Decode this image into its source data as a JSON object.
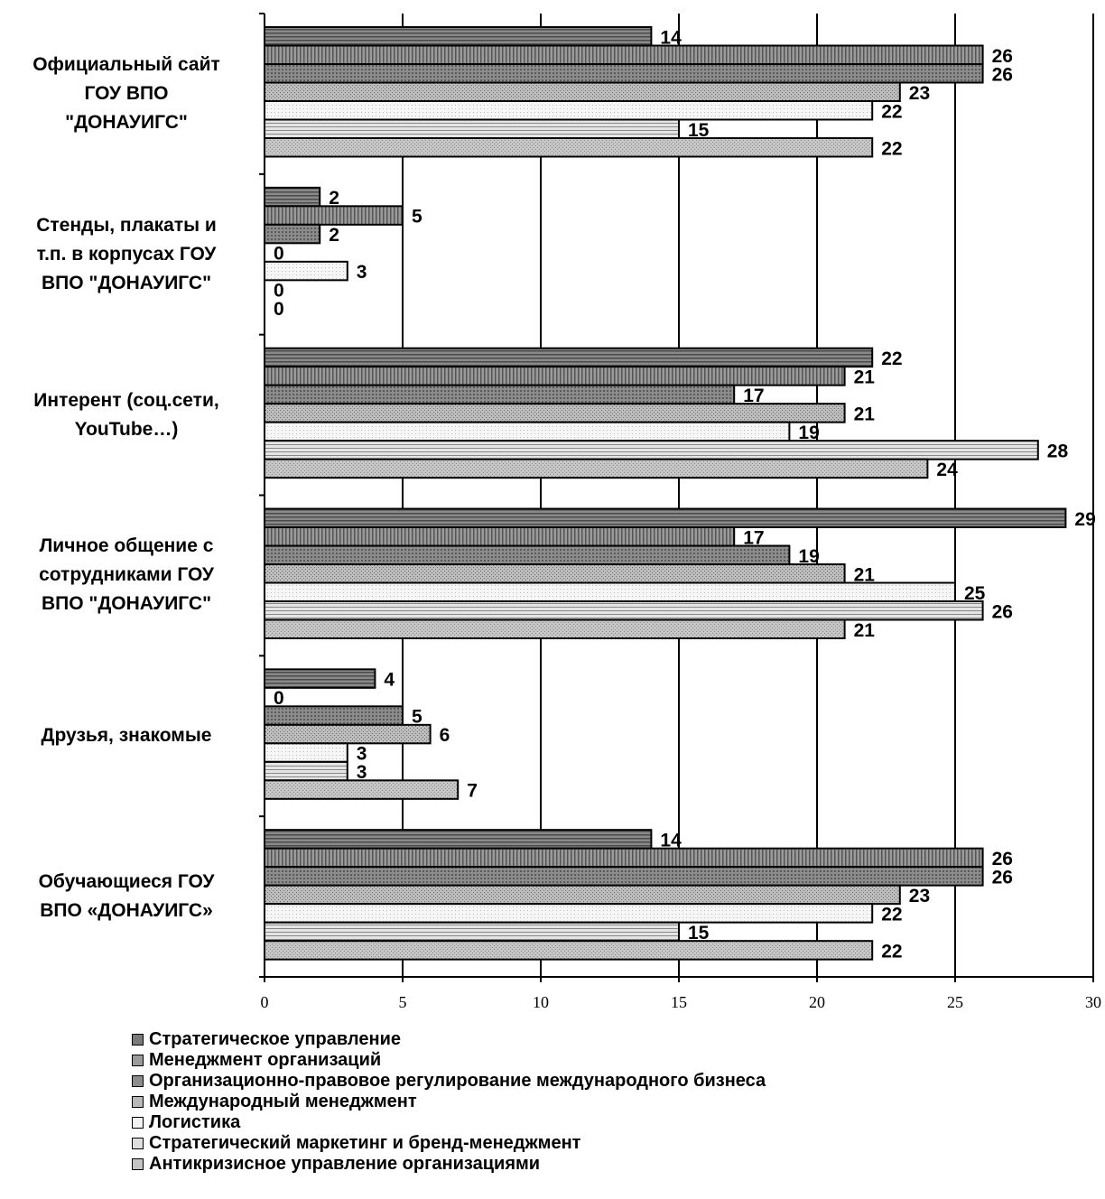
{
  "chart_data": {
    "type": "bar",
    "orientation": "horizontal",
    "title": "",
    "xlabel": "",
    "ylabel": "",
    "xlim": [
      0,
      30
    ],
    "x_ticks": [
      "0",
      "5",
      "10",
      "15",
      "20",
      "25",
      "30"
    ],
    "grid": true,
    "legend_position": "bottom",
    "categories": [
      "Официальный сайт ГОУ ВПО \"ДОНАУИГС\"",
      "Стенды, плакаты и т.п. в корпусах ГОУ ВПО \"ДОНАУИГС\"",
      "Интерент (соц.сети, YouTube…)",
      "Личное общение с сотрудниками ГОУ ВПО \"ДОНАУИГС\"",
      "Друзья, знакомые",
      "Обучающиеся ГОУ ВПО «ДОНАУИГС»"
    ],
    "category_lines": [
      [
        "Официальный сайт",
        "ГОУ ВПО",
        "\"ДОНАУИГС\""
      ],
      [
        "Стенды, плакаты и",
        "т.п. в корпусах ГОУ",
        "ВПО \"ДОНАУИГС\""
      ],
      [
        "Интерент (соц.сети,",
        "YouTube…)"
      ],
      [
        "Личное общение с",
        "сотрудниками ГОУ",
        "ВПО \"ДОНАУИГС\""
      ],
      [
        "Друзья, знакомые"
      ],
      [
        "Обучающиеся ГОУ",
        "ВПО «ДОНАУИГС»"
      ]
    ],
    "series": [
      {
        "name": "Стратегическое управление",
        "values": [
          14,
          2,
          22,
          29,
          4,
          14
        ]
      },
      {
        "name": "Менеджмент  организаций",
        "values": [
          26,
          5,
          21,
          17,
          0,
          26
        ]
      },
      {
        "name": "Организационно-правовое регулирование международного бизнеса",
        "values": [
          26,
          2,
          17,
          19,
          5,
          26
        ]
      },
      {
        "name": "Международный менеджмент",
        "values": [
          23,
          0,
          21,
          21,
          6,
          23
        ]
      },
      {
        "name": "Логистика",
        "values": [
          22,
          3,
          19,
          25,
          3,
          22
        ]
      },
      {
        "name": "Стратегический маркетинг и бренд-менеджмент",
        "values": [
          15,
          0,
          28,
          26,
          3,
          15
        ]
      },
      {
        "name": "Антикризисное управление организациями",
        "values": [
          22,
          0,
          24,
          21,
          7,
          22
        ]
      }
    ],
    "series_colors": [
      "#7a7a7a",
      "#9a9a9a",
      "#8c8c8c",
      "#b8b8b8",
      "#f2f2f2",
      "#dedede",
      "#c4c4c4"
    ]
  }
}
